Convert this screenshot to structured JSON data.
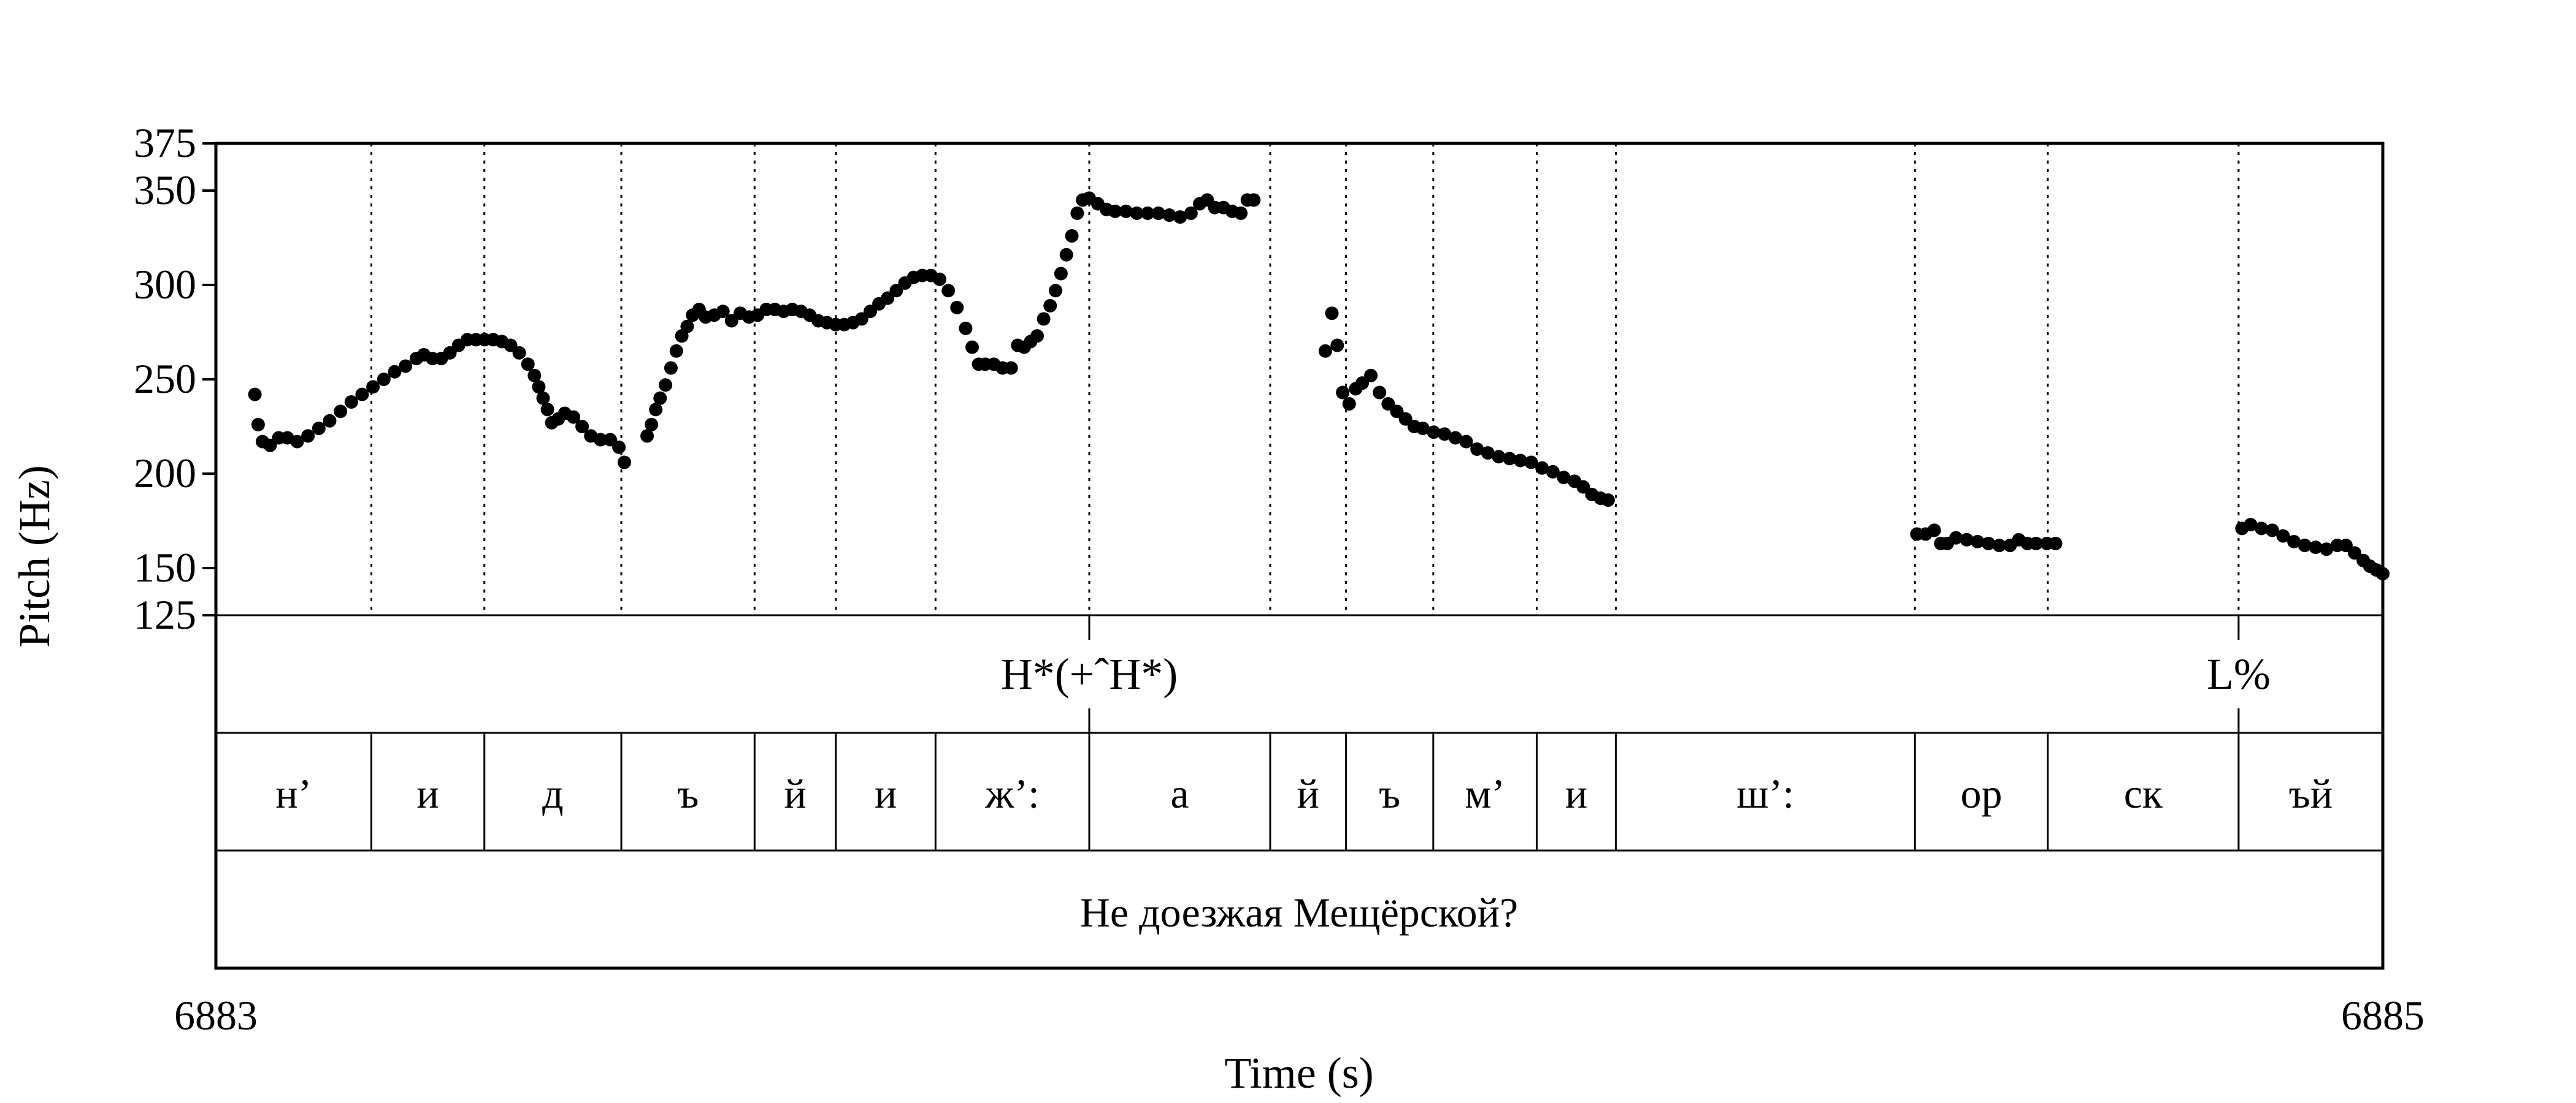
{
  "chart_data": {
    "type": "scatter",
    "ylabel": "Pitch (Hz)",
    "xlabel": "Time (s)",
    "x_ticks": [
      "6883",
      "6885"
    ],
    "xlim": [
      6883,
      6885
    ],
    "ylim": [
      125,
      375
    ],
    "y_ticks": [
      125,
      150,
      200,
      250,
      300,
      350,
      375
    ],
    "y_tick_labels": [
      "125",
      "150",
      "200",
      "250",
      "300",
      "350",
      "375"
    ],
    "grid": false,
    "boundaries": [
      6883.1435,
      6883.2478,
      6883.3742,
      6883.4972,
      6883.5722,
      6883.6642,
      6883.8061,
      6883.9731,
      6884.0431,
      6884.1236,
      6884.2191,
      6884.2921,
      6884.5682,
      6884.6908,
      6884.8669
    ],
    "tone_tier": [
      {
        "label": "H*(+ˆH*)",
        "time": 6883.8061
      },
      {
        "label": "L%",
        "time": 6884.8669
      }
    ],
    "segment_tier": [
      "н’",
      "и",
      "д",
      "ъ",
      "й",
      "и",
      "ж’:",
      "а",
      "й",
      "ъ",
      "м’",
      "и",
      "ш’:",
      "ор",
      "ск",
      "ъй"
    ],
    "sentence_tier": "Не доезжая Мещёрской?",
    "series": [
      {
        "values": [
          [
            6883.036,
            242
          ],
          [
            6883.039,
            226
          ],
          [
            6883.043,
            217
          ],
          [
            6883.05,
            215
          ],
          [
            6883.058,
            219
          ],
          [
            6883.066,
            219
          ],
          [
            6883.075,
            217
          ],
          [
            6883.085,
            220
          ],
          [
            6883.095,
            224
          ],
          [
            6883.105,
            228
          ],
          [
            6883.115,
            233
          ],
          [
            6883.125,
            238
          ],
          [
            6883.135,
            242
          ],
          [
            6883.145,
            246
          ],
          [
            6883.155,
            250
          ],
          [
            6883.165,
            254
          ],
          [
            6883.175,
            257
          ],
          [
            6883.185,
            261
          ],
          [
            6883.192,
            263
          ],
          [
            6883.2,
            261
          ],
          [
            6883.208,
            261
          ],
          [
            6883.216,
            264
          ],
          [
            6883.224,
            268
          ],
          [
            6883.232,
            271
          ],
          [
            6883.24,
            271
          ],
          [
            6883.248,
            271
          ],
          [
            6883.256,
            271
          ],
          [
            6883.264,
            270
          ],
          [
            6883.272,
            268
          ],
          [
            6883.28,
            264
          ],
          [
            6883.288,
            258
          ],
          [
            6883.294,
            252
          ],
          [
            6883.298,
            246
          ],
          [
            6883.302,
            240
          ],
          [
            6883.306,
            234
          ],
          [
            6883.31,
            227
          ],
          [
            6883.316,
            229
          ],
          [
            6883.322,
            232
          ],
          [
            6883.33,
            230
          ],
          [
            6883.338,
            225
          ],
          [
            6883.346,
            220
          ],
          [
            6883.355,
            218
          ],
          [
            6883.364,
            218
          ],
          [
            6883.372,
            214
          ],
          [
            6883.377,
            206
          ],
          [
            6883.398,
            220
          ],
          [
            6883.402,
            226
          ],
          [
            6883.406,
            234
          ],
          [
            6883.41,
            240
          ],
          [
            6883.415,
            247
          ],
          [
            6883.42,
            256
          ],
          [
            6883.425,
            265
          ],
          [
            6883.43,
            273
          ],
          [
            6883.435,
            278
          ],
          [
            6883.44,
            284
          ],
          [
            6883.446,
            287
          ],
          [
            6883.452,
            283
          ],
          [
            6883.46,
            284
          ],
          [
            6883.468,
            286
          ],
          [
            6883.476,
            281
          ],
          [
            6883.484,
            285
          ],
          [
            6883.492,
            283
          ],
          [
            6883.5,
            284
          ],
          [
            6883.508,
            287
          ],
          [
            6883.516,
            287
          ],
          [
            6883.524,
            286
          ],
          [
            6883.532,
            287
          ],
          [
            6883.54,
            286
          ],
          [
            6883.548,
            284
          ],
          [
            6883.556,
            281
          ],
          [
            6883.564,
            280
          ],
          [
            6883.572,
            279
          ],
          [
            6883.58,
            279
          ],
          [
            6883.588,
            280
          ],
          [
            6883.596,
            282
          ],
          [
            6883.604,
            286
          ],
          [
            6883.612,
            290
          ],
          [
            6883.62,
            293
          ],
          [
            6883.628,
            297
          ],
          [
            6883.636,
            301
          ],
          [
            6883.644,
            304
          ],
          [
            6883.652,
            305
          ],
          [
            6883.66,
            305
          ],
          [
            6883.668,
            303
          ],
          [
            6883.676,
            297
          ],
          [
            6883.684,
            288
          ],
          [
            6883.692,
            277
          ],
          [
            6883.698,
            267
          ],
          [
            6883.704,
            258
          ],
          [
            6883.71,
            258
          ],
          [
            6883.718,
            258
          ],
          [
            6883.726,
            256
          ],
          [
            6883.734,
            256
          ],
          [
            6883.74,
            268
          ],
          [
            6883.746,
            267
          ],
          [
            6883.752,
            270
          ],
          [
            6883.758,
            273
          ],
          [
            6883.764,
            282
          ],
          [
            6883.77,
            289
          ],
          [
            6883.775,
            297
          ],
          [
            6883.78,
            306
          ],
          [
            6883.785,
            316
          ],
          [
            6883.79,
            326
          ],
          [
            6883.795,
            338
          ],
          [
            6883.8,
            345
          ],
          [
            6883.806,
            346
          ],
          [
            6883.814,
            343
          ],
          [
            6883.822,
            340
          ],
          [
            6883.83,
            339
          ],
          [
            6883.84,
            339
          ],
          [
            6883.85,
            338
          ],
          [
            6883.86,
            338
          ],
          [
            6883.87,
            338
          ],
          [
            6883.88,
            337
          ],
          [
            6883.89,
            336
          ],
          [
            6883.9,
            338
          ],
          [
            6883.908,
            343
          ],
          [
            6883.915,
            345
          ],
          [
            6883.922,
            341
          ],
          [
            6883.93,
            341
          ],
          [
            6883.938,
            339
          ],
          [
            6883.946,
            338
          ],
          [
            6883.952,
            345
          ],
          [
            6883.958,
            345
          ],
          [
            6884.024,
            265
          ],
          [
            6884.03,
            285
          ],
          [
            6884.035,
            268
          ],
          [
            6884.04,
            243
          ],
          [
            6884.046,
            237
          ],
          [
            6884.052,
            245
          ],
          [
            6884.058,
            248
          ],
          [
            6884.066,
            252
          ],
          [
            6884.074,
            243
          ],
          [
            6884.082,
            237
          ],
          [
            6884.09,
            233
          ],
          [
            6884.098,
            229
          ],
          [
            6884.106,
            225
          ],
          [
            6884.114,
            224
          ],
          [
            6884.124,
            222
          ],
          [
            6884.134,
            221
          ],
          [
            6884.144,
            219
          ],
          [
            6884.154,
            217
          ],
          [
            6884.164,
            213
          ],
          [
            6884.174,
            211
          ],
          [
            6884.184,
            209
          ],
          [
            6884.194,
            208
          ],
          [
            6884.204,
            207
          ],
          [
            6884.214,
            206
          ],
          [
            6884.224,
            203
          ],
          [
            6884.234,
            201
          ],
          [
            6884.244,
            198
          ],
          [
            6884.254,
            196
          ],
          [
            6884.262,
            193
          ],
          [
            6884.27,
            189
          ],
          [
            6884.278,
            187
          ],
          [
            6884.285,
            186
          ],
          [
            6884.57,
            168
          ],
          [
            6884.578,
            168
          ],
          [
            6884.586,
            170
          ],
          [
            6884.592,
            163
          ],
          [
            6884.598,
            163
          ],
          [
            6884.606,
            166
          ],
          [
            6884.616,
            165
          ],
          [
            6884.626,
            164
          ],
          [
            6884.636,
            163
          ],
          [
            6884.646,
            162
          ],
          [
            6884.656,
            162
          ],
          [
            6884.664,
            165
          ],
          [
            6884.672,
            163
          ],
          [
            6884.68,
            163
          ],
          [
            6884.69,
            163
          ],
          [
            6884.698,
            163
          ],
          [
            6884.87,
            171
          ],
          [
            6884.878,
            173
          ],
          [
            6884.888,
            171
          ],
          [
            6884.898,
            170
          ],
          [
            6884.908,
            167
          ],
          [
            6884.918,
            164
          ],
          [
            6884.928,
            162
          ],
          [
            6884.938,
            161
          ],
          [
            6884.948,
            160
          ],
          [
            6884.958,
            162
          ],
          [
            6884.966,
            162
          ],
          [
            6884.974,
            158
          ],
          [
            6884.982,
            154
          ],
          [
            6884.988,
            151
          ],
          [
            6884.994,
            149
          ],
          [
            6885.0,
            147
          ]
        ]
      }
    ]
  }
}
